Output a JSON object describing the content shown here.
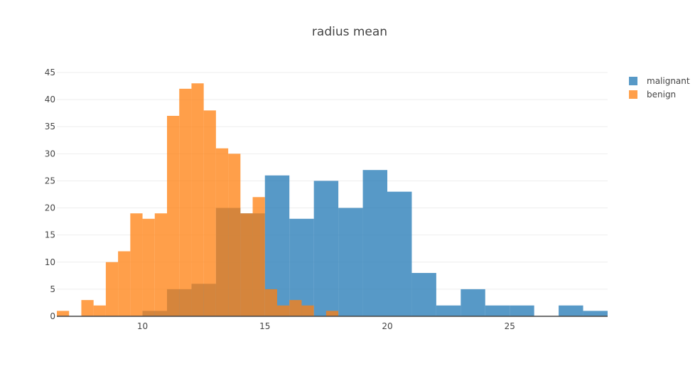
{
  "chart_data": {
    "type": "bar",
    "title": "radius mean",
    "xlabel": "",
    "ylabel": "",
    "xlim": [
      6.5,
      29
    ],
    "ylim": [
      0,
      45
    ],
    "x_ticks": [
      10,
      15,
      20,
      25
    ],
    "y_ticks": [
      0,
      5,
      10,
      15,
      20,
      25,
      30,
      35,
      40,
      45
    ],
    "grid": "y",
    "legend_position": "top-right",
    "series": [
      {
        "name": "malignant",
        "color": "#1f77b4",
        "bins": [
          {
            "x0": 10,
            "x1": 11,
            "y": 1
          },
          {
            "x0": 11,
            "x1": 12,
            "y": 5
          },
          {
            "x0": 12,
            "x1": 13,
            "y": 6
          },
          {
            "x0": 13,
            "x1": 14,
            "y": 20
          },
          {
            "x0": 14,
            "x1": 15,
            "y": 19
          },
          {
            "x0": 15,
            "x1": 16,
            "y": 26
          },
          {
            "x0": 16,
            "x1": 17,
            "y": 18
          },
          {
            "x0": 17,
            "x1": 18,
            "y": 25
          },
          {
            "x0": 18,
            "x1": 19,
            "y": 20
          },
          {
            "x0": 19,
            "x1": 20,
            "y": 27
          },
          {
            "x0": 20,
            "x1": 21,
            "y": 23
          },
          {
            "x0": 21,
            "x1": 22,
            "y": 8
          },
          {
            "x0": 22,
            "x1": 23,
            "y": 2
          },
          {
            "x0": 23,
            "x1": 24,
            "y": 5
          },
          {
            "x0": 24,
            "x1": 25,
            "y": 2
          },
          {
            "x0": 25,
            "x1": 26,
            "y": 2
          },
          {
            "x0": 26,
            "x1": 27,
            "y": 0
          },
          {
            "x0": 27,
            "x1": 28,
            "y": 2
          },
          {
            "x0": 28,
            "x1": 29,
            "y": 1
          }
        ]
      },
      {
        "name": "benign",
        "color": "#ff7f0e",
        "bins": [
          {
            "x0": 6.5,
            "x1": 7.0,
            "y": 1
          },
          {
            "x0": 7.0,
            "x1": 7.5,
            "y": 0
          },
          {
            "x0": 7.5,
            "x1": 8.0,
            "y": 3
          },
          {
            "x0": 8.0,
            "x1": 8.5,
            "y": 2
          },
          {
            "x0": 8.5,
            "x1": 9.0,
            "y": 10
          },
          {
            "x0": 9.0,
            "x1": 9.5,
            "y": 12
          },
          {
            "x0": 9.5,
            "x1": 10.0,
            "y": 19
          },
          {
            "x0": 10.0,
            "x1": 10.5,
            "y": 18
          },
          {
            "x0": 10.5,
            "x1": 11.0,
            "y": 19
          },
          {
            "x0": 11.0,
            "x1": 11.5,
            "y": 37
          },
          {
            "x0": 11.5,
            "x1": 12.0,
            "y": 42
          },
          {
            "x0": 12.0,
            "x1": 12.5,
            "y": 43
          },
          {
            "x0": 12.5,
            "x1": 13.0,
            "y": 38
          },
          {
            "x0": 13.0,
            "x1": 13.5,
            "y": 31
          },
          {
            "x0": 13.5,
            "x1": 14.0,
            "y": 30
          },
          {
            "x0": 14.0,
            "x1": 14.5,
            "y": 19
          },
          {
            "x0": 14.5,
            "x1": 15.0,
            "y": 22
          },
          {
            "x0": 15.0,
            "x1": 15.5,
            "y": 5
          },
          {
            "x0": 15.5,
            "x1": 16.0,
            "y": 2
          },
          {
            "x0": 16.0,
            "x1": 16.5,
            "y": 3
          },
          {
            "x0": 16.5,
            "x1": 17.0,
            "y": 2
          },
          {
            "x0": 17.0,
            "x1": 17.5,
            "y": 0
          },
          {
            "x0": 17.5,
            "x1": 18.0,
            "y": 1
          }
        ]
      }
    ]
  }
}
